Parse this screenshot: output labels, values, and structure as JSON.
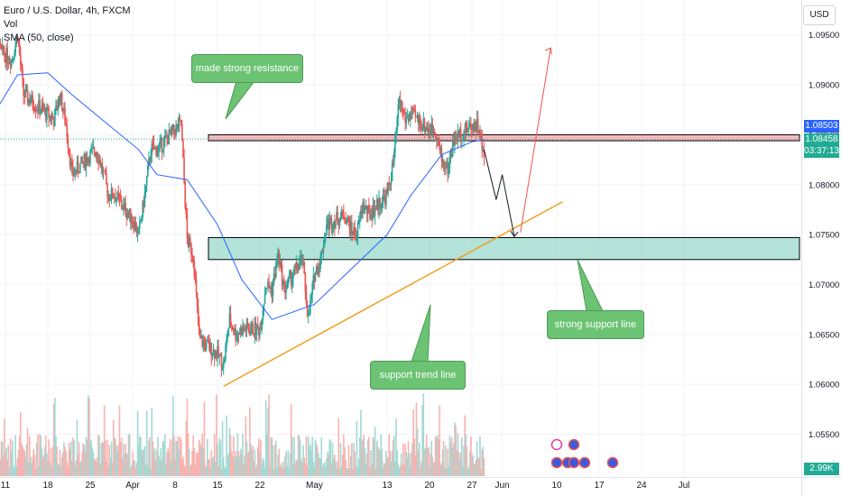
{
  "header": {
    "symbol_line": "Euro / U.S. Dollar, 4h, FXCM",
    "vol_label": "Vol",
    "sma_label": "SMA (50, close)"
  },
  "currency_button": "USD",
  "annotations": {
    "resistance": "made strong resistance",
    "support_line": "strong support line",
    "trend_line": "support trend line"
  },
  "price_tags": {
    "resistance_level": "1.08503",
    "last_price": "1.08458",
    "countdown": "03:37:13",
    "volume": "2.99K"
  },
  "colors": {
    "up": "#26a69a",
    "down": "#ef5350",
    "sma": "#2962ff",
    "resistance_zone": "#f5a3a8",
    "support_zone": "#9ad9cc",
    "trend_line": "#f0a020",
    "callout": "#6cc373"
  },
  "chart_data": {
    "type": "candlestick",
    "symbol": "EURUSD",
    "timeframe": "4h",
    "y_ticks": [
      "1.09500",
      "1.09000",
      "1.08500",
      "1.08000",
      "1.07500",
      "1.07000",
      "1.06500",
      "1.06000",
      "1.05500"
    ],
    "y_tick_values": [
      1.095,
      1.09,
      1.085,
      1.08,
      1.075,
      1.07,
      1.065,
      1.06,
      1.055
    ],
    "ylim": [
      1.0508,
      1.0985
    ],
    "x_ticks": [
      "11",
      "18",
      "25",
      "Apr",
      "8",
      "15",
      "22",
      "May",
      "13",
      "20",
      "27",
      "Jun",
      "10",
      "17",
      "24",
      "Jul"
    ],
    "x_tick_dates": [
      "2024-03-11",
      "2024-03-18",
      "2024-03-25",
      "2024-04-01",
      "2024-04-08",
      "2024-04-15",
      "2024-04-22",
      "2024-05-01",
      "2024-05-13",
      "2024-05-20",
      "2024-05-27",
      "2024-06-01",
      "2024-06-10",
      "2024-06-17",
      "2024-06-24",
      "2024-07-01"
    ],
    "path_close": [
      [
        "2024-03-08",
        1.0945
      ],
      [
        "2024-03-11",
        1.093
      ],
      [
        "2024-03-12",
        1.0925
      ],
      [
        "2024-03-13",
        1.095
      ],
      [
        "2024-03-14",
        1.089
      ],
      [
        "2024-03-15",
        1.0885
      ],
      [
        "2024-03-18",
        1.087
      ],
      [
        "2024-03-19",
        1.0865
      ],
      [
        "2024-03-20",
        1.089
      ],
      [
        "2024-03-21",
        1.086
      ],
      [
        "2024-03-22",
        1.081
      ],
      [
        "2024-03-25",
        1.083
      ],
      [
        "2024-03-26",
        1.0835
      ],
      [
        "2024-03-27",
        1.0815
      ],
      [
        "2024-03-28",
        1.079
      ],
      [
        "2024-03-29",
        1.079
      ],
      [
        "2024-04-01",
        1.0765
      ],
      [
        "2024-04-02",
        1.075
      ],
      [
        "2024-04-03",
        1.079
      ],
      [
        "2024-04-04",
        1.0835
      ],
      [
        "2024-04-05",
        1.0835
      ],
      [
        "2024-04-08",
        1.0855
      ],
      [
        "2024-04-09",
        1.086
      ],
      [
        "2024-04-10",
        1.0745
      ],
      [
        "2024-04-11",
        1.073
      ],
      [
        "2024-04-12",
        1.0645
      ],
      [
        "2024-04-15",
        1.063
      ],
      [
        "2024-04-16",
        1.062
      ],
      [
        "2024-04-17",
        1.0665
      ],
      [
        "2024-04-18",
        1.065
      ],
      [
        "2024-04-19",
        1.0655
      ],
      [
        "2024-04-22",
        1.0655
      ],
      [
        "2024-04-23",
        1.07
      ],
      [
        "2024-04-24",
        1.0695
      ],
      [
        "2024-04-25",
        1.073
      ],
      [
        "2024-04-26",
        1.0695
      ],
      [
        "2024-04-29",
        1.0725
      ],
      [
        "2024-04-30",
        1.0665
      ],
      [
        "2024-05-01",
        1.071
      ],
      [
        "2024-05-02",
        1.0725
      ],
      [
        "2024-05-03",
        1.076
      ],
      [
        "2024-05-06",
        1.077
      ],
      [
        "2024-05-07",
        1.0755
      ],
      [
        "2024-05-08",
        1.075
      ],
      [
        "2024-05-09",
        1.078
      ],
      [
        "2024-05-10",
        1.077
      ],
      [
        "2024-05-13",
        1.079
      ],
      [
        "2024-05-14",
        1.082
      ],
      [
        "2024-05-15",
        1.0885
      ],
      [
        "2024-05-16",
        1.0865
      ],
      [
        "2024-05-17",
        1.087
      ],
      [
        "2024-05-20",
        1.0855
      ],
      [
        "2024-05-21",
        1.0855
      ],
      [
        "2024-05-22",
        1.0825
      ],
      [
        "2024-05-23",
        1.0815
      ],
      [
        "2024-05-24",
        1.0845
      ],
      [
        "2024-05-27",
        1.086
      ],
      [
        "2024-05-28",
        1.086
      ],
      [
        "2024-05-29",
        1.0825
      ]
    ],
    "sma_50": [
      [
        "2024-03-08",
        1.086
      ],
      [
        "2024-03-13",
        1.091
      ],
      [
        "2024-03-18",
        1.0912
      ],
      [
        "2024-03-22",
        1.089
      ],
      [
        "2024-03-27",
        1.0865
      ],
      [
        "2024-04-02",
        1.0835
      ],
      [
        "2024-04-05",
        1.081
      ],
      [
        "2024-04-10",
        1.0805
      ],
      [
        "2024-04-15",
        1.076
      ],
      [
        "2024-04-19",
        1.0705
      ],
      [
        "2024-04-24",
        1.0665
      ],
      [
        "2024-05-01",
        1.068
      ],
      [
        "2024-05-07",
        1.0715
      ],
      [
        "2024-05-13",
        1.075
      ],
      [
        "2024-05-17",
        1.079
      ],
      [
        "2024-05-22",
        1.083
      ],
      [
        "2024-05-27",
        1.0843
      ],
      [
        "2024-05-29",
        1.0845
      ]
    ],
    "resistance_zone": [
      1.085,
      1.0844
    ],
    "support_zone": [
      1.0747,
      1.0725
    ],
    "trend_line": [
      [
        "2024-04-16",
        1.0598
      ],
      [
        "2024-06-11",
        1.0783
      ]
    ],
    "forecast_path": [
      [
        "2024-05-29",
        1.0835
      ],
      [
        "2024-05-31",
        1.0785
      ],
      [
        "2024-06-01",
        1.081
      ],
      [
        "2024-06-03",
        1.0748
      ]
    ],
    "bullish_target": [
      [
        "2024-06-04",
        1.0752
      ],
      [
        "2024-06-09",
        1.0937
      ]
    ]
  }
}
